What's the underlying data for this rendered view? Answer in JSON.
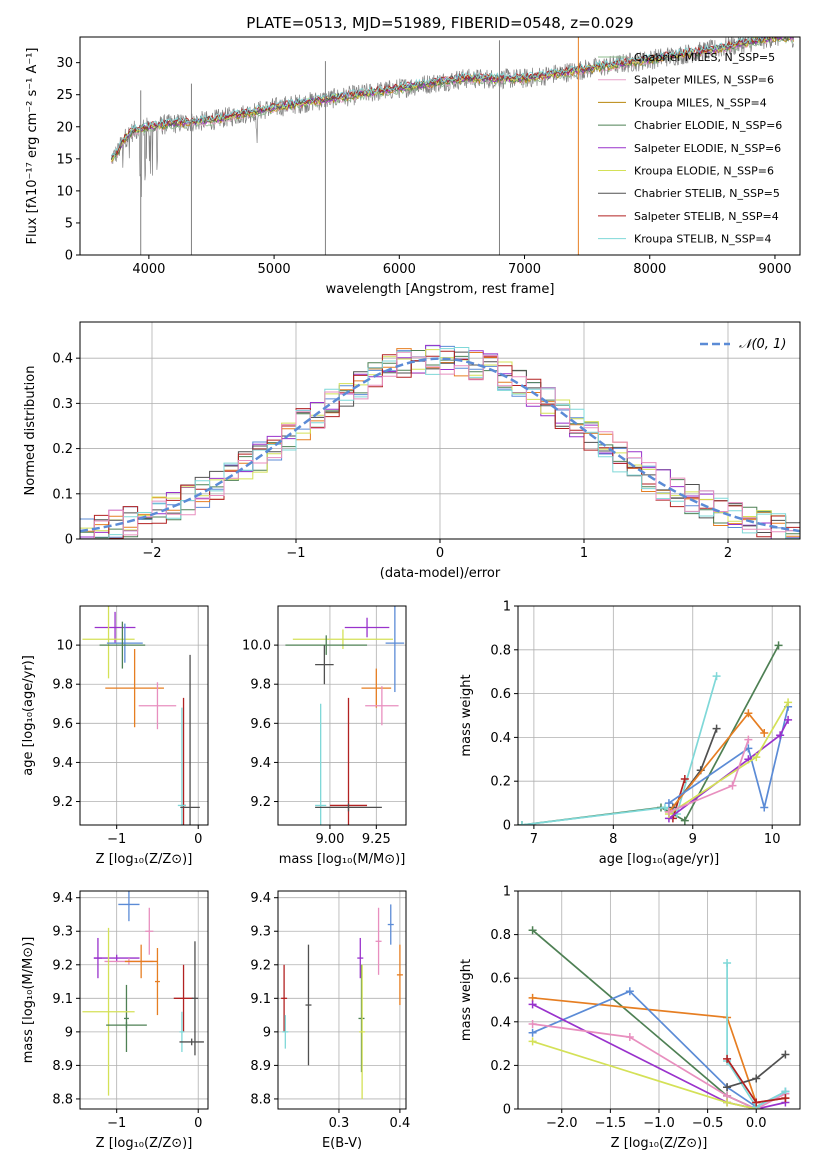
{
  "chart_data": [
    {
      "id": "spectrum",
      "type": "line",
      "title": "PLATE=0513, MJD=51989, FIBERID=0548, z=0.029",
      "xlabel": "wavelength [Angstrom, rest frame]",
      "ylabel": "Flux [fλ10⁻¹⁷ erg cm⁻² s⁻¹ A⁻¹]",
      "xlim": [
        3450,
        9200
      ],
      "ylim": [
        0,
        34
      ],
      "xticks": [
        4000,
        5000,
        6000,
        7000,
        8000,
        9000
      ],
      "yticks": [
        0,
        5,
        10,
        15,
        20,
        25,
        30
      ],
      "grid": false,
      "legend_position": "top-right",
      "series": [
        {
          "name": "Chabrier MILES, N_SSP=5",
          "color": "#8fbc8f"
        },
        {
          "name": "Salpeter MILES, N_SSP=6",
          "color": "#e8a0c8"
        },
        {
          "name": "Kroupa MILES, N_SSP=4",
          "color": "#b8860b"
        },
        {
          "name": "Chabrier ELODIE, N_SSP=6",
          "color": "#4e8054"
        },
        {
          "name": "Salpeter ELODIE, N_SSP=6",
          "color": "#9932cc"
        },
        {
          "name": "Kroupa ELODIE, N_SSP=6",
          "color": "#d4e157"
        },
        {
          "name": "Chabrier STELIB, N_SSP=5",
          "color": "#505050"
        },
        {
          "name": "Salpeter STELIB, N_SSP=4",
          "color": "#b22222"
        },
        {
          "name": "Kroupa STELIB, N_SSP=4",
          "color": "#7fd8d8"
        }
      ],
      "data_continuum": [
        [
          3700,
          15
        ],
        [
          3750,
          16
        ],
        [
          3800,
          18
        ],
        [
          3850,
          19
        ],
        [
          3900,
          19.5
        ],
        [
          4000,
          20
        ],
        [
          4200,
          20.5
        ],
        [
          4500,
          21
        ],
        [
          5000,
          23
        ],
        [
          5500,
          24.5
        ],
        [
          6000,
          26
        ],
        [
          6500,
          27.5
        ],
        [
          7000,
          27.5
        ],
        [
          7500,
          29
        ],
        [
          8000,
          30.5
        ],
        [
          8500,
          32
        ],
        [
          9000,
          34
        ]
      ],
      "data_dips": [
        [
          3935,
          0
        ],
        [
          4340,
          0
        ],
        [
          5410,
          0
        ],
        [
          6800,
          0
        ],
        [
          7430,
          0
        ]
      ]
    },
    {
      "id": "residuals",
      "type": "histogram",
      "xlabel": "(data-model)/error",
      "ylabel": "Normed distribution",
      "xlim": [
        -2.5,
        2.5
      ],
      "ylim": [
        0,
        0.48
      ],
      "xticks": [
        -2,
        -1,
        0,
        1,
        2
      ],
      "xtick_labels": [
        "−2",
        "−1",
        "0",
        "1",
        "2"
      ],
      "yticks": [
        0.0,
        0.1,
        0.2,
        0.3,
        0.4
      ],
      "grid": true,
      "legend": [
        {
          "name": "𝒩(0, 1)",
          "style": "dashed",
          "color": "#5b8bd6"
        }
      ],
      "legend_position": "top-right",
      "hist_colors": [
        "#5b8bd6",
        "#e67e22",
        "#4e8054",
        "#9932cc",
        "#d4e157",
        "#505050",
        "#b22222",
        "#7fd8d8",
        "#e88fbf"
      ]
    },
    {
      "id": "age_vs_Z",
      "type": "scatter",
      "xlabel": "Z [log₁₀(Z/Z⊙)]",
      "ylabel": "age  [log₁₀(age/yr)]",
      "xlim": [
        -1.45,
        0.12
      ],
      "ylim": [
        9.08,
        10.2
      ],
      "xticks": [
        -1,
        0
      ],
      "xtick_labels": [
        "−1",
        "0"
      ],
      "yticks": [
        9.2,
        9.4,
        9.6,
        9.8,
        10.0
      ],
      "grid": true,
      "points": [
        {
          "color": "#9932cc",
          "x": -1.02,
          "xerr": 0.25,
          "y": 10.09,
          "yerr": 0.08
        },
        {
          "color": "#d4e157",
          "x": -1.1,
          "xerr": 0.32,
          "y": 10.03,
          "yerr": 0.2
        },
        {
          "color": "#5b8bd6",
          "x": -0.9,
          "xerr": 0.22,
          "y": 10.01,
          "yerr": 0.1
        },
        {
          "color": "#4e8054",
          "x": -0.93,
          "xerr": 0.28,
          "y": 10.0,
          "yerr": 0.12
        },
        {
          "color": "#e67e22",
          "x": -0.78,
          "xerr": 0.36,
          "y": 9.78,
          "yerr": 0.2
        },
        {
          "color": "#e88fbf",
          "x": -0.5,
          "xerr": 0.23,
          "y": 9.69,
          "yerr": 0.12
        },
        {
          "color": "#b22222",
          "x": -0.18,
          "xerr": 0.03,
          "y": 9.18,
          "yerr": 0.55
        },
        {
          "color": "#7fd8d8",
          "x": -0.2,
          "xerr": 0.05,
          "y": 9.18,
          "yerr": 0.5
        },
        {
          "color": "#505050",
          "x": -0.1,
          "xerr": 0.12,
          "y": 9.17,
          "yerr": 0.78
        }
      ]
    },
    {
      "id": "age_vs_mass",
      "type": "scatter",
      "xlabel": "mass [log₁₀(M/M⊙)]",
      "ylabel": "",
      "xlim": [
        8.72,
        9.41
      ],
      "ylim": [
        9.08,
        10.2
      ],
      "xticks": [
        9.0,
        9.25
      ],
      "xtick_labels": [
        "9.00",
        "9.25"
      ],
      "yticks": [
        9.2,
        9.4,
        9.6,
        9.8,
        10.0
      ],
      "ytick_labels": [
        "9.2",
        "9.4",
        "9.6",
        "9.8",
        "10.0"
      ],
      "grid": true,
      "points": [
        {
          "color": "#d4e157",
          "x": 9.07,
          "xerr": 0.27,
          "y": 10.03,
          "yerr": 0.05
        },
        {
          "color": "#9932cc",
          "x": 9.2,
          "xerr": 0.12,
          "y": 10.09,
          "yerr": 0.05
        },
        {
          "color": "#5b8bd6",
          "x": 9.35,
          "xerr": 0.05,
          "y": 10.01,
          "yerr": 0.25
        },
        {
          "color": "#4e8054",
          "x": 8.98,
          "xerr": 0.22,
          "y": 10.0,
          "yerr": 0.05
        },
        {
          "color": "#505050",
          "x": 8.97,
          "xerr": 0.05,
          "y": 9.9,
          "yerr": 0.1
        },
        {
          "color": "#e67e22",
          "x": 9.25,
          "xerr": 0.08,
          "y": 9.78,
          "yerr": 0.1
        },
        {
          "color": "#e88fbf",
          "x": 9.28,
          "xerr": 0.09,
          "y": 9.69,
          "yerr": 0.1
        },
        {
          "color": "#b22222",
          "x": 9.1,
          "xerr": 0.1,
          "y": 9.18,
          "yerr": 0.55
        },
        {
          "color": "#7fd8d8",
          "x": 8.95,
          "xerr": 0.03,
          "y": 9.18,
          "yerr": 0.52
        },
        {
          "color": "#505050",
          "x": 9.1,
          "xerr": 0.18,
          "y": 9.17,
          "yerr": 0.02
        }
      ]
    },
    {
      "id": "weight_vs_age",
      "type": "line",
      "xlabel": "age  [log₁₀(age/yr)]",
      "ylabel": "mass weight",
      "xlim": [
        6.8,
        10.35
      ],
      "ylim": [
        0,
        1.0
      ],
      "xticks": [
        7,
        8,
        9,
        10
      ],
      "yticks": [
        0.0,
        0.2,
        0.4,
        0.6,
        0.8,
        1.0
      ],
      "grid": true,
      "series": [
        {
          "color": "#4e8054",
          "x": [
            6.85,
            8.6,
            8.9,
            10.08
          ],
          "y": [
            0.0,
            0.08,
            0.02,
            0.82
          ]
        },
        {
          "color": "#7fd8d8",
          "x": [
            6.85,
            8.65,
            8.8,
            9.3
          ],
          "y": [
            0.0,
            0.08,
            0.05,
            0.68
          ]
        },
        {
          "color": "#b22222",
          "x": [
            8.75,
            8.9
          ],
          "y": [
            0.03,
            0.21
          ]
        },
        {
          "color": "#505050",
          "x": [
            8.75,
            9.1,
            9.3
          ],
          "y": [
            0.08,
            0.25,
            0.44
          ]
        },
        {
          "color": "#e67e22",
          "x": [
            8.7,
            9.7,
            9.9
          ],
          "y": [
            0.06,
            0.51,
            0.42
          ]
        },
        {
          "color": "#5b8bd6",
          "x": [
            8.7,
            9.7,
            9.9,
            10.2
          ],
          "y": [
            0.1,
            0.35,
            0.08,
            0.54
          ]
        },
        {
          "color": "#9932cc",
          "x": [
            8.7,
            9.7,
            10.1,
            10.2
          ],
          "y": [
            0.03,
            0.3,
            0.41,
            0.48
          ]
        },
        {
          "color": "#d4e157",
          "x": [
            8.7,
            9.8,
            10.2
          ],
          "y": [
            0.05,
            0.31,
            0.56
          ]
        },
        {
          "color": "#e88fbf",
          "x": [
            8.7,
            9.5,
            9.7
          ],
          "y": [
            0.06,
            0.18,
            0.39
          ]
        }
      ]
    },
    {
      "id": "mass_vs_Z",
      "type": "scatter",
      "xlabel": "Z [log₁₀(Z/Z⊙)]",
      "ylabel": "mass [log₁₀(M/M⊙)]",
      "xlim": [
        -1.45,
        0.12
      ],
      "ylim": [
        8.77,
        9.42
      ],
      "xticks": [
        -1,
        0
      ],
      "xtick_labels": [
        "−1",
        "0"
      ],
      "yticks": [
        8.8,
        8.9,
        9.0,
        9.1,
        9.2,
        9.3,
        9.4
      ],
      "grid": true,
      "points": [
        {
          "color": "#5b8bd6",
          "x": -0.85,
          "xerr": 0.13,
          "y": 9.38,
          "yerr": 0.05
        },
        {
          "color": "#e88fbf",
          "x": -0.6,
          "xerr": 0.05,
          "y": 9.3,
          "yerr": 0.07
        },
        {
          "color": "#9932cc",
          "x": -1.23,
          "xerr": 0.05,
          "y": 9.22,
          "yerr": 0.06
        },
        {
          "color": "#9932cc",
          "x": -1.0,
          "xerr": 0.28,
          "y": 9.22,
          "yerr": 0.01
        },
        {
          "color": "#e88fbf",
          "x": -0.85,
          "xerr": 0.3,
          "y": 9.21,
          "yerr": 0.01
        },
        {
          "color": "#e67e22",
          "x": -0.7,
          "xerr": 0.2,
          "y": 9.21,
          "yerr": 0.05
        },
        {
          "color": "#e67e22",
          "x": -0.5,
          "xerr": 0.03,
          "y": 9.15,
          "yerr": 0.1
        },
        {
          "color": "#b22222",
          "x": -0.18,
          "xerr": 0.12,
          "y": 9.1,
          "yerr": 0.1
        },
        {
          "color": "#505050",
          "x": -0.04,
          "xerr": 0.04,
          "y": 9.1,
          "yerr": 0.17
        },
        {
          "color": "#4e8054",
          "x": -0.88,
          "xerr": 0.03,
          "y": 9.04,
          "yerr": 0.1
        },
        {
          "color": "#7fd8d8",
          "x": -0.2,
          "xerr": 0.03,
          "y": 9.0,
          "yerr": 0.06
        },
        {
          "color": "#d4e157",
          "x": -1.1,
          "xerr": 0.32,
          "y": 9.06,
          "yerr": 0.25
        },
        {
          "color": "#4e8054",
          "x": -0.88,
          "xerr": 0.25,
          "y": 9.02,
          "yerr": 0.01
        },
        {
          "color": "#505050",
          "x": -0.08,
          "xerr": 0.15,
          "y": 8.97,
          "yerr": 0.01
        }
      ]
    },
    {
      "id": "mass_vs_ebv",
      "type": "scatter",
      "xlabel": "E(B-V)",
      "ylabel": "",
      "xlim": [
        0.2,
        0.41
      ],
      "ylim": [
        8.77,
        9.42
      ],
      "xticks": [
        0.3,
        0.4
      ],
      "xtick_labels": [
        "0.3",
        "0.4"
      ],
      "yticks": [
        8.8,
        8.9,
        9.0,
        9.1,
        9.2,
        9.3,
        9.4
      ],
      "grid": true,
      "points": [
        {
          "color": "#b22222",
          "x": 0.21,
          "y": 9.1,
          "yerr": 0.1
        },
        {
          "color": "#7fd8d8",
          "x": 0.212,
          "y": 9.0,
          "yerr": 0.05
        },
        {
          "color": "#505050",
          "x": 0.25,
          "y": 9.08,
          "yerr": 0.18
        },
        {
          "color": "#9932cc",
          "x": 0.335,
          "y": 9.22,
          "yerr": 0.06
        },
        {
          "color": "#4e8054",
          "x": 0.337,
          "y": 9.04,
          "yerr": 0.16
        },
        {
          "color": "#d4e157",
          "x": 0.338,
          "y": 9.0,
          "yerr": 0.2
        },
        {
          "color": "#e88fbf",
          "x": 0.365,
          "y": 9.27,
          "yerr": 0.1
        },
        {
          "color": "#5b8bd6",
          "x": 0.385,
          "y": 9.32,
          "yerr": 0.06
        },
        {
          "color": "#e67e22",
          "x": 0.4,
          "y": 9.17,
          "yerr": 0.09
        }
      ]
    },
    {
      "id": "weight_vs_Z",
      "type": "line",
      "xlabel": "Z [log₁₀(Z/Z⊙)]",
      "ylabel": "mass weight",
      "xlim": [
        -2.45,
        0.45
      ],
      "ylim": [
        0,
        1.0
      ],
      "xticks": [
        -2.0,
        -1.5,
        -1.0,
        -0.5,
        0.0
      ],
      "xtick_labels": [
        "−2.0",
        "−1.5",
        "−1.0",
        "−0.5",
        "0.0"
      ],
      "yticks": [
        0.0,
        0.2,
        0.4,
        0.6,
        0.8,
        1.0
      ],
      "grid": true,
      "series": [
        {
          "color": "#4e8054",
          "x": [
            -2.3,
            -0.3,
            0.0
          ],
          "y": [
            0.82,
            0.06,
            0.0
          ]
        },
        {
          "color": "#e67e22",
          "x": [
            -2.3,
            -0.3,
            0.0,
            0.3
          ],
          "y": [
            0.51,
            0.42,
            0.03,
            0.05
          ]
        },
        {
          "color": "#5b8bd6",
          "x": [
            -2.3,
            -1.3,
            -0.3,
            0.0,
            0.3
          ],
          "y": [
            0.35,
            0.54,
            0.1,
            0.01,
            0.08
          ]
        },
        {
          "color": "#9932cc",
          "x": [
            -2.3,
            -0.3,
            0.0,
            0.3
          ],
          "y": [
            0.48,
            0.03,
            0.0,
            0.03
          ]
        },
        {
          "color": "#e88fbf",
          "x": [
            -2.3,
            -1.3,
            -0.3,
            0.0,
            0.3
          ],
          "y": [
            0.39,
            0.33,
            0.06,
            0.0,
            0.07
          ]
        },
        {
          "color": "#d4e157",
          "x": [
            -2.3,
            -0.3,
            0.0
          ],
          "y": [
            0.31,
            0.03,
            0.0
          ]
        },
        {
          "color": "#7fd8d8",
          "x": [
            -0.3,
            -0.3,
            0.0,
            0.3
          ],
          "y": [
            0.67,
            0.22,
            0.01,
            0.08
          ]
        },
        {
          "color": "#505050",
          "x": [
            -0.3,
            0.0,
            0.3
          ],
          "y": [
            0.1,
            0.14,
            0.25
          ]
        },
        {
          "color": "#b22222",
          "x": [
            -0.3,
            0.0,
            0.3
          ],
          "y": [
            0.23,
            0.03,
            0.05
          ]
        }
      ]
    }
  ]
}
